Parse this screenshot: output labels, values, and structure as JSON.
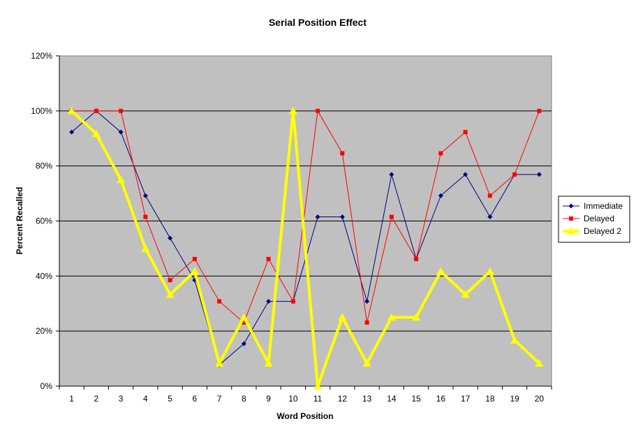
{
  "chart_data": {
    "type": "line",
    "title": "Serial Position Effect",
    "xlabel": "Word Position",
    "ylabel": "Percent Recalled",
    "categories": [
      "1",
      "2",
      "3",
      "4",
      "5",
      "6",
      "7",
      "8",
      "9",
      "10",
      "11",
      "12",
      "13",
      "14",
      "15",
      "16",
      "17",
      "18",
      "19",
      "20"
    ],
    "ylim": [
      0,
      1.2
    ],
    "ytick_labels": [
      "0%",
      "20%",
      "40%",
      "60%",
      "80%",
      "100%",
      "120%"
    ],
    "grid": true,
    "plot_background": "#c0c0c0",
    "legend_position": "right",
    "series": [
      {
        "name": "Immediate",
        "color": "#000080",
        "marker": "diamond",
        "values": [
          0.923,
          1.0,
          0.923,
          0.692,
          0.538,
          0.385,
          0.077,
          0.154,
          0.308,
          0.308,
          0.615,
          0.615,
          0.308,
          0.769,
          0.462,
          0.692,
          0.769,
          0.615,
          0.769,
          0.769
        ]
      },
      {
        "name": "Delayed",
        "color": "#ff0000",
        "marker": "square",
        "values": [
          1.0,
          1.0,
          1.0,
          0.615,
          0.385,
          0.462,
          0.308,
          0.231,
          0.462,
          0.308,
          1.0,
          0.846,
          0.231,
          0.615,
          0.462,
          0.846,
          0.923,
          0.692,
          0.769,
          1.0
        ]
      },
      {
        "name": "Delayed 2",
        "color": "#ffff00",
        "marker": "triangle",
        "values": [
          1.0,
          0.917,
          0.75,
          0.5,
          0.333,
          0.417,
          0.083,
          0.25,
          0.083,
          1.0,
          0.0,
          0.25,
          0.083,
          0.25,
          0.25,
          0.417,
          0.333,
          0.417,
          0.167,
          0.083
        ]
      }
    ]
  }
}
